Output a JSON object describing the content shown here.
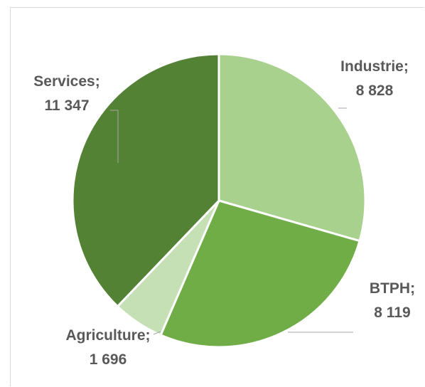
{
  "chart_data": {
    "type": "pie",
    "categories": [
      "Industrie",
      "BTPH",
      "Agriculture",
      "Services"
    ],
    "values": [
      8828,
      8119,
      1696,
      11347
    ],
    "value_labels": [
      "8 828",
      "8 119",
      "1 696",
      "11 347"
    ],
    "label_separator": ";",
    "start_angle_deg": 0,
    "direction": "clockwise",
    "legend": "none",
    "colors": [
      "#a9d18e",
      "#70ad47",
      "#c5e0b4",
      "#548235"
    ],
    "slice_border_color": "#ffffff"
  }
}
